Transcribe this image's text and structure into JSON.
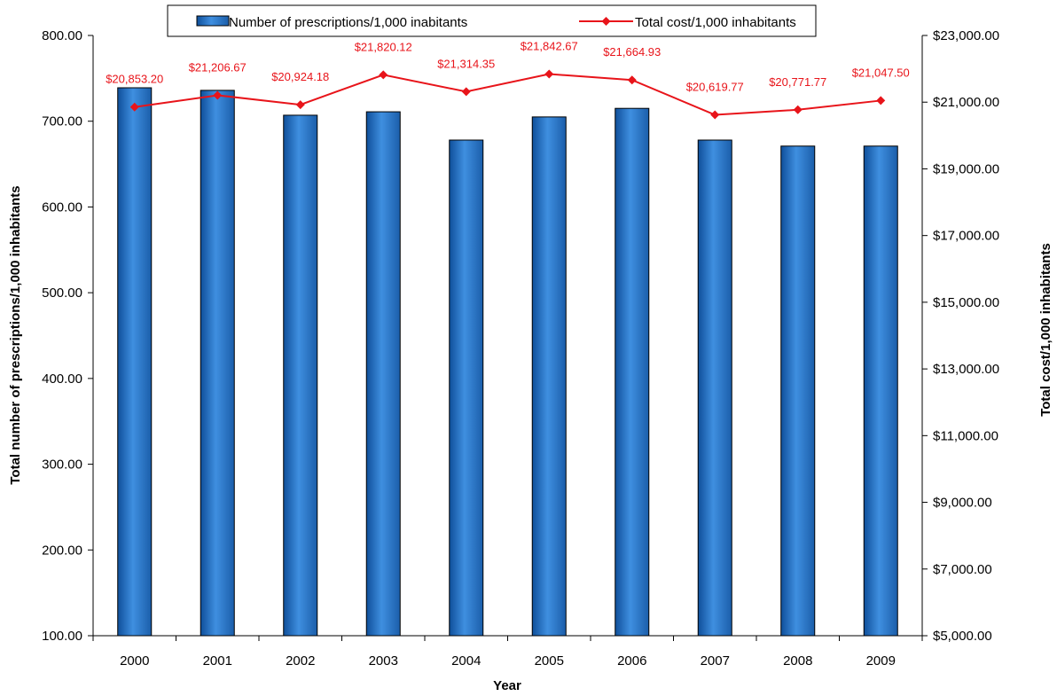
{
  "chart_data": {
    "type": "bar",
    "categories": [
      "2000",
      "2001",
      "2002",
      "2003",
      "2004",
      "2005",
      "2006",
      "2007",
      "2008",
      "2009"
    ],
    "series": [
      {
        "name": "Number of prescriptions/1,000 inabitants",
        "kind": "bar",
        "axis": "left",
        "color": "#2e7bd0",
        "values": [
          739,
          736,
          707,
          711,
          678,
          705,
          715,
          678,
          671,
          671
        ]
      },
      {
        "name": "Total cost/1,000 inhabitants",
        "kind": "line",
        "axis": "right",
        "color": "#e8141a",
        "values": [
          20853.2,
          21206.67,
          20924.18,
          21820.12,
          21314.35,
          21842.67,
          21664.93,
          20619.77,
          20771.77,
          21047.5
        ],
        "labels": [
          "$20,853.20",
          "$21,206.67",
          "$20,924.18",
          "$21,820.12",
          "$21,314.35",
          "$21,842.67",
          "$21,664.93",
          "$20,619.77",
          "$20,771.77",
          "$21,047.50"
        ]
      }
    ],
    "xlabel": "Year",
    "ylabel": "Total number of prescriptions/1,000 inhabitants",
    "y2label": "Total cost/1,000 inhabitants",
    "ylim": [
      100,
      800
    ],
    "y2lim": [
      5000,
      23000
    ],
    "yticks": [
      "800.00",
      "700.00",
      "600.00",
      "500.00",
      "400.00",
      "300.00",
      "200.00",
      "100.00"
    ],
    "y2ticks": [
      "$23,000.00",
      "$21,000.00",
      "$19,000.00",
      "$17,000.00",
      "$15,000.00",
      "$13,000.00",
      "$11,000.00",
      "$9,000.00",
      "$7,000.00",
      "$5,000.00"
    ],
    "grid": false,
    "legend_position": "top"
  }
}
